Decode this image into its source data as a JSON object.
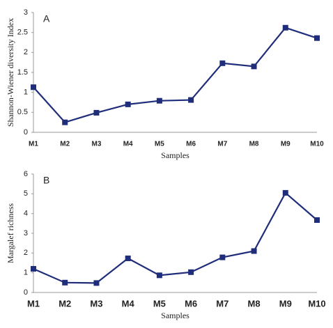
{
  "chart_data": [
    {
      "type": "line",
      "title": "A",
      "y_label": "Shannon-Wiener diversity Index",
      "x_label": "Samples",
      "categories": [
        "M1",
        "M2",
        "M3",
        "M4",
        "M5",
        "M6",
        "M7",
        "M8",
        "M9",
        "M10"
      ],
      "values": [
        1.13,
        0.25,
        0.49,
        0.7,
        0.79,
        0.81,
        1.73,
        1.65,
        2.62,
        2.36
      ],
      "color": "#1f2d7a",
      "ylim": [
        0,
        3
      ],
      "yticks": [
        0,
        0.5,
        1,
        1.5,
        2,
        2.5,
        3
      ],
      "grid": false
    },
    {
      "type": "line",
      "title": "B",
      "y_label": "Margalef richness",
      "x_label": "Samples",
      "categories": [
        "M1",
        "M2",
        "M3",
        "M4",
        "M5",
        "M6",
        "M7",
        "M8",
        "M9",
        "M10"
      ],
      "values": [
        1.2,
        0.5,
        0.48,
        1.73,
        0.87,
        1.03,
        1.78,
        2.1,
        5.05,
        3.67
      ],
      "color": "#1f2d7a",
      "ylim": [
        0,
        6
      ],
      "yticks": [
        0,
        1,
        2,
        3,
        4,
        5,
        6
      ],
      "grid": false
    }
  ]
}
